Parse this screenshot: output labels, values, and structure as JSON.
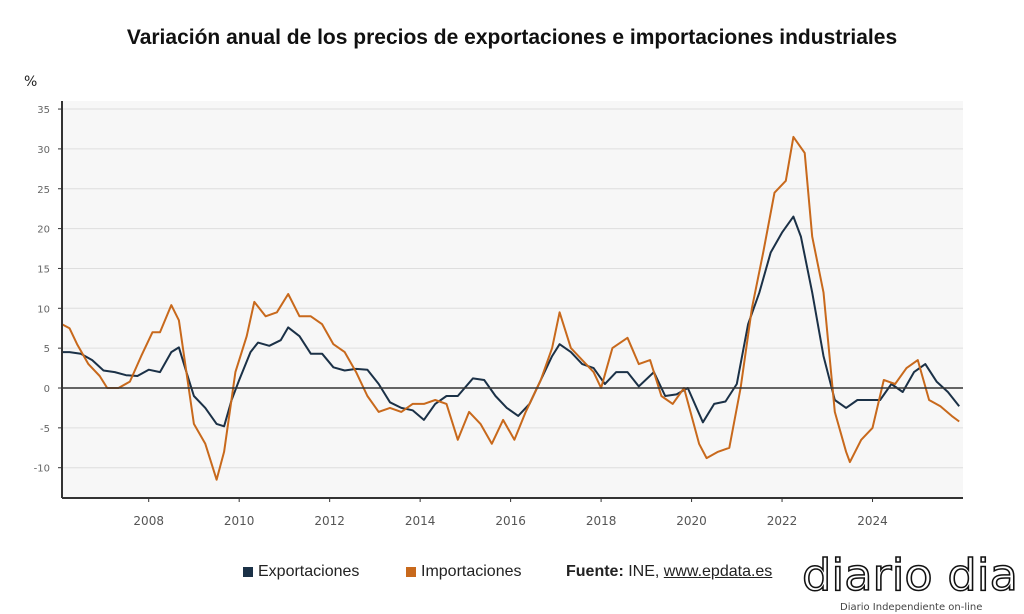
{
  "chart_data": {
    "type": "line",
    "title": "Variación anual de los precios de exportaciones e importaciones industriales",
    "ylabel": "%",
    "xlabel": "",
    "ylim": [
      -14,
      36
    ],
    "xlim": [
      "2006-02",
      "2026-01"
    ],
    "yticks": [
      35,
      30,
      25,
      20,
      15,
      10,
      5,
      0,
      -5,
      -10
    ],
    "xticks": [
      "2008",
      "2010",
      "2012",
      "2014",
      "2016",
      "2018",
      "2020",
      "2022",
      "2024"
    ],
    "grid": true,
    "legend": "bottom",
    "series": [
      {
        "name": "Exportaciones",
        "color": "#1b3147",
        "points": [
          [
            "2006-02",
            4.5
          ],
          [
            "2006-04",
            4.5
          ],
          [
            "2006-07",
            4.3
          ],
          [
            "2006-10",
            3.5
          ],
          [
            "2007-01",
            2.2
          ],
          [
            "2007-04",
            2.0
          ],
          [
            "2007-07",
            1.6
          ],
          [
            "2007-10",
            1.5
          ],
          [
            "2008-01",
            2.3
          ],
          [
            "2008-04",
            2.0
          ],
          [
            "2008-07",
            4.5
          ],
          [
            "2008-09",
            5.1
          ],
          [
            "2008-11",
            2.0
          ],
          [
            "2009-01",
            -1.0
          ],
          [
            "2009-04",
            -2.5
          ],
          [
            "2009-07",
            -4.5
          ],
          [
            "2009-09",
            -4.8
          ],
          [
            "2009-11",
            -1.5
          ],
          [
            "2010-01",
            1.0
          ],
          [
            "2010-04",
            4.5
          ],
          [
            "2010-06",
            5.7
          ],
          [
            "2010-09",
            5.3
          ],
          [
            "2010-12",
            6.0
          ],
          [
            "2011-02",
            7.6
          ],
          [
            "2011-05",
            6.5
          ],
          [
            "2011-08",
            4.3
          ],
          [
            "2011-11",
            4.3
          ],
          [
            "2012-02",
            2.6
          ],
          [
            "2012-05",
            2.2
          ],
          [
            "2012-08",
            2.4
          ],
          [
            "2012-11",
            2.3
          ],
          [
            "2013-02",
            0.5
          ],
          [
            "2013-05",
            -1.8
          ],
          [
            "2013-08",
            -2.5
          ],
          [
            "2013-11",
            -2.8
          ],
          [
            "2014-02",
            -4.0
          ],
          [
            "2014-05",
            -2.0
          ],
          [
            "2014-08",
            -1.0
          ],
          [
            "2014-11",
            -1.0
          ],
          [
            "2015-03",
            1.2
          ],
          [
            "2015-06",
            1.0
          ],
          [
            "2015-09",
            -1.0
          ],
          [
            "2015-12",
            -2.5
          ],
          [
            "2016-03",
            -3.5
          ],
          [
            "2016-06",
            -2.0
          ],
          [
            "2016-09",
            1.0
          ],
          [
            "2016-12",
            4.0
          ],
          [
            "2017-02",
            5.5
          ],
          [
            "2017-05",
            4.5
          ],
          [
            "2017-08",
            3.0
          ],
          [
            "2017-11",
            2.5
          ],
          [
            "2018-02",
            0.5
          ],
          [
            "2018-05",
            2.0
          ],
          [
            "2018-08",
            2.0
          ],
          [
            "2018-11",
            0.2
          ],
          [
            "2019-03",
            2.0
          ],
          [
            "2019-06",
            -1.0
          ],
          [
            "2019-09",
            -0.8
          ],
          [
            "2019-12",
            0.0
          ],
          [
            "2020-04",
            -4.3
          ],
          [
            "2020-07",
            -2.0
          ],
          [
            "2020-10",
            -1.7
          ],
          [
            "2021-01",
            0.5
          ],
          [
            "2021-04",
            8.0
          ],
          [
            "2021-07",
            12.0
          ],
          [
            "2021-10",
            17.0
          ],
          [
            "2022-01",
            19.5
          ],
          [
            "2022-04",
            21.5
          ],
          [
            "2022-06",
            19.0
          ],
          [
            "2022-09",
            12.0
          ],
          [
            "2022-12",
            4.0
          ],
          [
            "2023-03",
            -1.5
          ],
          [
            "2023-06",
            -2.5
          ],
          [
            "2023-09",
            -1.5
          ],
          [
            "2023-12",
            -1.5
          ],
          [
            "2024-03",
            -1.5
          ],
          [
            "2024-06",
            0.5
          ],
          [
            "2024-09",
            -0.5
          ],
          [
            "2024-12",
            2.0
          ],
          [
            "2025-03",
            3.0
          ],
          [
            "2025-06",
            0.8
          ],
          [
            "2025-09",
            -0.5
          ],
          [
            "2025-12",
            -2.3
          ]
        ]
      },
      {
        "name": "Importaciones",
        "color": "#c8691c",
        "points": [
          [
            "2006-02",
            8.0
          ],
          [
            "2006-04",
            7.5
          ],
          [
            "2006-06",
            5.5
          ],
          [
            "2006-09",
            3.0
          ],
          [
            "2006-12",
            1.5
          ],
          [
            "2007-02",
            0.0
          ],
          [
            "2007-05",
            0.0
          ],
          [
            "2007-08",
            0.8
          ],
          [
            "2007-11",
            4.0
          ],
          [
            "2008-02",
            7.0
          ],
          [
            "2008-04",
            7.0
          ],
          [
            "2008-07",
            10.4
          ],
          [
            "2008-09",
            8.5
          ],
          [
            "2008-11",
            2.0
          ],
          [
            "2009-01",
            -4.5
          ],
          [
            "2009-04",
            -7.0
          ],
          [
            "2009-07",
            -11.5
          ],
          [
            "2009-09",
            -8.0
          ],
          [
            "2009-12",
            2.0
          ],
          [
            "2010-03",
            6.5
          ],
          [
            "2010-05",
            10.8
          ],
          [
            "2010-08",
            9.0
          ],
          [
            "2010-11",
            9.5
          ],
          [
            "2011-02",
            11.8
          ],
          [
            "2011-05",
            9.0
          ],
          [
            "2011-08",
            9.0
          ],
          [
            "2011-11",
            8.0
          ],
          [
            "2012-02",
            5.5
          ],
          [
            "2012-05",
            4.5
          ],
          [
            "2012-08",
            2.0
          ],
          [
            "2012-11",
            -1.0
          ],
          [
            "2013-02",
            -3.0
          ],
          [
            "2013-05",
            -2.5
          ],
          [
            "2013-08",
            -3.0
          ],
          [
            "2013-11",
            -2.0
          ],
          [
            "2014-02",
            -2.0
          ],
          [
            "2014-05",
            -1.5
          ],
          [
            "2014-08",
            -2.0
          ],
          [
            "2014-11",
            -6.5
          ],
          [
            "2015-02",
            -3.0
          ],
          [
            "2015-05",
            -4.5
          ],
          [
            "2015-08",
            -7.0
          ],
          [
            "2015-11",
            -4.0
          ],
          [
            "2016-02",
            -6.5
          ],
          [
            "2016-05",
            -3.0
          ],
          [
            "2016-09",
            1.0
          ],
          [
            "2016-12",
            5.0
          ],
          [
            "2017-02",
            9.5
          ],
          [
            "2017-05",
            5.0
          ],
          [
            "2017-08",
            3.5
          ],
          [
            "2017-11",
            2.0
          ],
          [
            "2018-01",
            0.0
          ],
          [
            "2018-04",
            5.0
          ],
          [
            "2018-08",
            6.3
          ],
          [
            "2018-11",
            3.0
          ],
          [
            "2019-02",
            3.5
          ],
          [
            "2019-05",
            -1.0
          ],
          [
            "2019-08",
            -2.0
          ],
          [
            "2019-11",
            0.0
          ],
          [
            "2020-03",
            -7.0
          ],
          [
            "2020-05",
            -8.8
          ],
          [
            "2020-08",
            -8.0
          ],
          [
            "2020-11",
            -7.5
          ],
          [
            "2021-02",
            0.0
          ],
          [
            "2021-05",
            10.0
          ],
          [
            "2021-08",
            17.0
          ],
          [
            "2021-11",
            24.5
          ],
          [
            "2022-02",
            26.0
          ],
          [
            "2022-04",
            31.5
          ],
          [
            "2022-07",
            29.5
          ],
          [
            "2022-09",
            19.0
          ],
          [
            "2022-12",
            12.0
          ],
          [
            "2023-03",
            -3.0
          ],
          [
            "2023-06",
            -8.0
          ],
          [
            "2023-07",
            -9.3
          ],
          [
            "2023-10",
            -6.5
          ],
          [
            "2024-01",
            -5.0
          ],
          [
            "2024-04",
            1.0
          ],
          [
            "2024-07",
            0.5
          ],
          [
            "2024-10",
            2.5
          ],
          [
            "2025-01",
            3.5
          ],
          [
            "2025-04",
            -1.5
          ],
          [
            "2025-07",
            -2.3
          ],
          [
            "2025-10",
            -3.5
          ],
          [
            "2025-12",
            -4.2
          ]
        ]
      }
    ]
  },
  "legend": {
    "exports": "Exportaciones",
    "imports": "Importaciones"
  },
  "source": {
    "label": "Fuente:",
    "text": " INE, ",
    "link": "www.epdata.es"
  },
  "logo": {
    "text": "diario dia",
    "tagline": "Diario Independiente on-line"
  }
}
